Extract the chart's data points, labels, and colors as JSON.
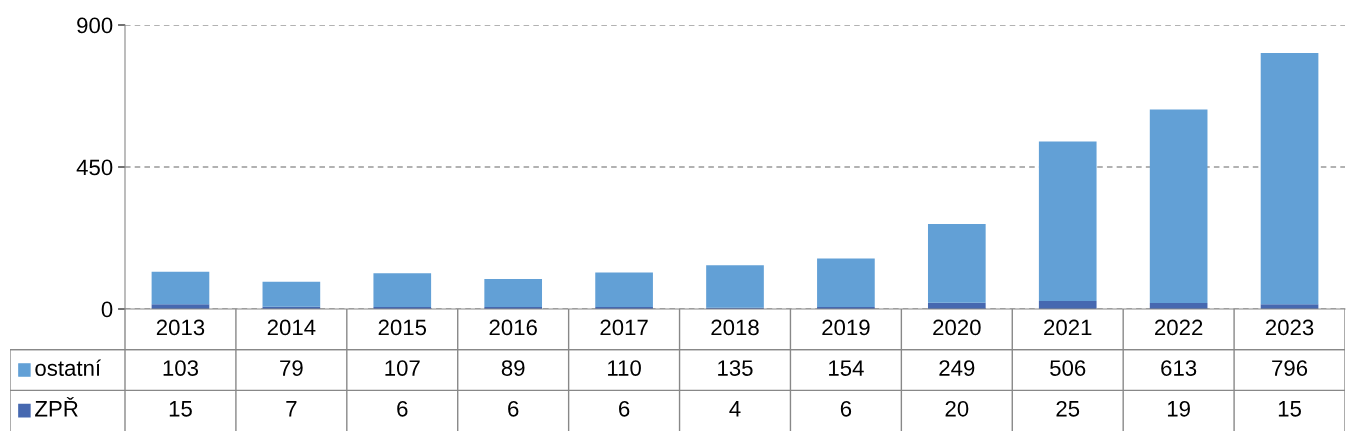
{
  "chart_data": {
    "type": "bar",
    "stacked": true,
    "categories": [
      "2013",
      "2014",
      "2015",
      "2016",
      "2017",
      "2018",
      "2019",
      "2020",
      "2021",
      "2022",
      "2023"
    ],
    "series": [
      {
        "name": "ZPŘ",
        "color": "#4668b0",
        "values": [
          15,
          7,
          6,
          6,
          6,
          4,
          6,
          20,
          25,
          19,
          15
        ]
      },
      {
        "name": "ostatní",
        "color": "#62a0d6",
        "values": [
          103,
          79,
          107,
          89,
          110,
          135,
          154,
          249,
          506,
          613,
          796
        ]
      }
    ],
    "ylim": [
      0,
      900
    ],
    "yticks": [
      0,
      450,
      900
    ],
    "grid": "y",
    "data_labels": true,
    "legend": "bottom"
  }
}
